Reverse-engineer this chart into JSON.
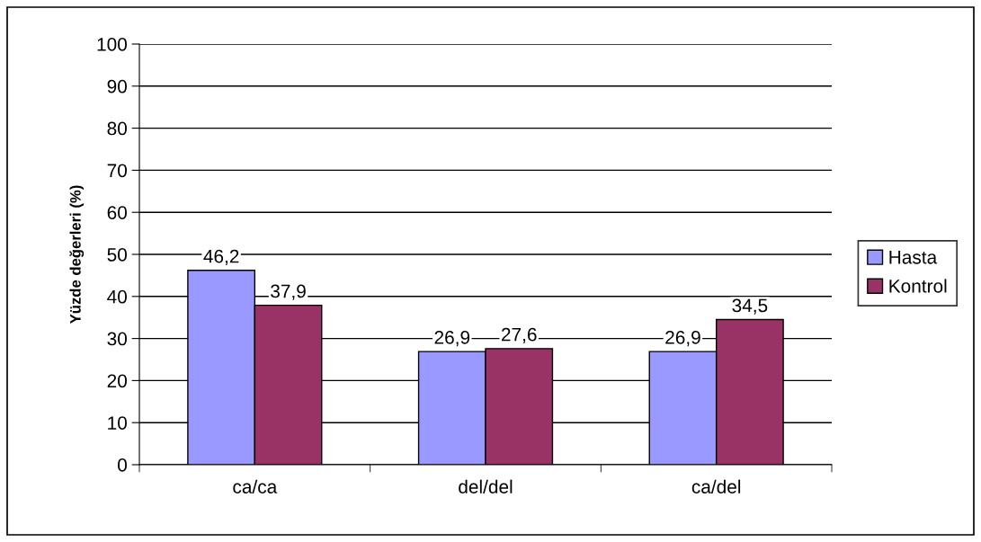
{
  "chart_data": {
    "type": "bar",
    "ylabel": "Yüzde değerleri (%)",
    "categories": [
      "ca/ca",
      "del/del",
      "ca/del"
    ],
    "series": [
      {
        "name": "Hasta",
        "color": "#9999ff",
        "values": [
          46.2,
          26.9,
          26.9
        ],
        "value_labels": [
          "46,2",
          "26,9",
          "26,9"
        ]
      },
      {
        "name": "Kontrol",
        "color": "#993366",
        "values": [
          37.9,
          27.6,
          34.5
        ],
        "value_labels": [
          "37,9",
          "27,6",
          "34,5"
        ]
      }
    ],
    "ylim": [
      0,
      100
    ],
    "yticks": [
      0,
      10,
      20,
      30,
      40,
      50,
      60,
      70,
      80,
      90,
      100
    ],
    "grid": "y",
    "legend": "right"
  }
}
